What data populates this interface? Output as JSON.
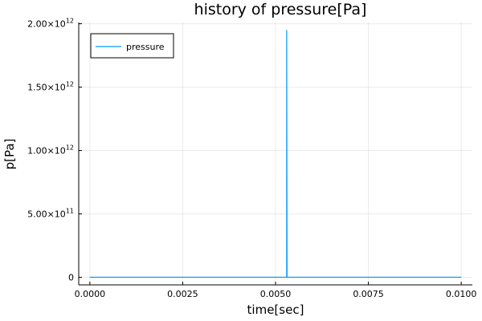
{
  "chart_data": {
    "type": "line",
    "title": "history of pressure[Pa]",
    "xlabel": "time[sec]",
    "ylabel": "p[Pa]",
    "xlim": [
      -0.0003,
      0.0103
    ],
    "ylim": [
      -60000000000,
      2010000000000
    ],
    "x_ticks": [
      {
        "value": 0.0,
        "label": "0.0000"
      },
      {
        "value": 0.0025,
        "label": "0.0025"
      },
      {
        "value": 0.005,
        "label": "0.0050"
      },
      {
        "value": 0.0075,
        "label": "0.0075"
      },
      {
        "value": 0.01,
        "label": "0.0100"
      }
    ],
    "y_ticks": [
      {
        "value": 0,
        "mantissa": "0",
        "exponent": ""
      },
      {
        "value": 500000000000,
        "mantissa": "5.00×10",
        "exponent": "11"
      },
      {
        "value": 1000000000000,
        "mantissa": "1.00×10",
        "exponent": "12"
      },
      {
        "value": 1500000000000,
        "mantissa": "1.50×10",
        "exponent": "12"
      },
      {
        "value": 2000000000000,
        "mantissa": "2.00×10",
        "exponent": "12"
      }
    ],
    "grid": true,
    "legend_position": "top-left",
    "series": [
      {
        "name": "pressure",
        "color": "#009AFA",
        "points": [
          [
            0.0,
            0
          ],
          [
            0.0053,
            0
          ],
          [
            0.0053,
            1950000000000
          ],
          [
            0.00531,
            0
          ],
          [
            0.01,
            0
          ]
        ]
      }
    ]
  }
}
